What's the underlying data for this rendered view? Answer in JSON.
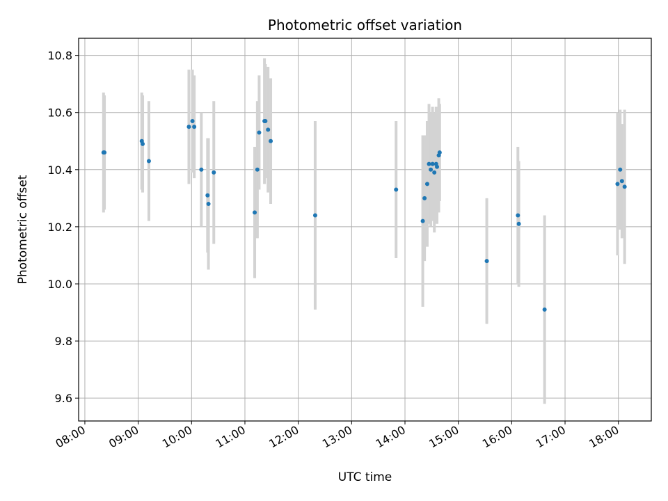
{
  "chart_data": {
    "type": "scatter",
    "title": "Photometric offset variation",
    "xlabel": "UTC time",
    "ylabel": "Photometric offset",
    "xlim": [
      "07:53",
      "18:37"
    ],
    "ylim": [
      9.52,
      10.86
    ],
    "xticks": [
      "08:00",
      "09:00",
      "10:00",
      "11:00",
      "12:00",
      "13:00",
      "14:00",
      "15:00",
      "16:00",
      "17:00",
      "18:00"
    ],
    "yticks": [
      9.6,
      9.8,
      10.0,
      10.2,
      10.4,
      10.6,
      10.8
    ],
    "ytick_labels": [
      "9.6",
      "9.8",
      "10.0",
      "10.2",
      "10.4",
      "10.6",
      "10.8"
    ],
    "grid": true,
    "colors": {
      "point": "#1f77b4",
      "errorbar": "#d3d3d3",
      "grid": "#b0b0b0"
    },
    "points": [
      {
        "x": "08:21",
        "y": 10.46,
        "err": 0.21
      },
      {
        "x": "08:22",
        "y": 10.46,
        "err": 0.2
      },
      {
        "x": "09:04",
        "y": 10.5,
        "err": 0.17
      },
      {
        "x": "09:05",
        "y": 10.49,
        "err": 0.17
      },
      {
        "x": "09:12",
        "y": 10.43,
        "err": 0.21
      },
      {
        "x": "09:57",
        "y": 10.55,
        "err": 0.2
      },
      {
        "x": "10:01",
        "y": 10.57,
        "err": 0.18
      },
      {
        "x": "10:03",
        "y": 10.55,
        "err": 0.18
      },
      {
        "x": "10:11",
        "y": 10.4,
        "err": 0.2
      },
      {
        "x": "10:18",
        "y": 10.31,
        "err": 0.2
      },
      {
        "x": "10:19",
        "y": 10.28,
        "err": 0.23
      },
      {
        "x": "10:25",
        "y": 10.39,
        "err": 0.25
      },
      {
        "x": "11:11",
        "y": 10.25,
        "err": 0.23
      },
      {
        "x": "11:14",
        "y": 10.4,
        "err": 0.24
      },
      {
        "x": "11:16",
        "y": 10.53,
        "err": 0.2
      },
      {
        "x": "11:22",
        "y": 10.57,
        "err": 0.22
      },
      {
        "x": "11:23",
        "y": 10.57,
        "err": 0.2
      },
      {
        "x": "11:26",
        "y": 10.54,
        "err": 0.22
      },
      {
        "x": "11:29",
        "y": 10.5,
        "err": 0.22
      },
      {
        "x": "12:19",
        "y": 10.24,
        "err": 0.33
      },
      {
        "x": "13:50",
        "y": 10.33,
        "err": 0.24
      },
      {
        "x": "14:20",
        "y": 10.22,
        "err": 0.3
      },
      {
        "x": "14:22",
        "y": 10.3,
        "err": 0.22
      },
      {
        "x": "14:25",
        "y": 10.35,
        "err": 0.22
      },
      {
        "x": "14:27",
        "y": 10.42,
        "err": 0.21
      },
      {
        "x": "14:29",
        "y": 10.4,
        "err": 0.2
      },
      {
        "x": "14:31",
        "y": 10.42,
        "err": 0.2
      },
      {
        "x": "14:33",
        "y": 10.39,
        "err": 0.21
      },
      {
        "x": "14:35",
        "y": 10.42,
        "err": 0.2
      },
      {
        "x": "14:36",
        "y": 10.41,
        "err": 0.2
      },
      {
        "x": "14:38",
        "y": 10.45,
        "err": 0.2
      },
      {
        "x": "14:39",
        "y": 10.46,
        "err": 0.17
      },
      {
        "x": "15:32",
        "y": 10.08,
        "err": 0.22
      },
      {
        "x": "16:07",
        "y": 10.24,
        "err": 0.24
      },
      {
        "x": "16:08",
        "y": 10.21,
        "err": 0.22
      },
      {
        "x": "16:37",
        "y": 9.91,
        "err": 0.33
      },
      {
        "x": "17:59",
        "y": 10.35,
        "err": 0.25
      },
      {
        "x": "18:02",
        "y": 10.4,
        "err": 0.21
      },
      {
        "x": "18:04",
        "y": 10.36,
        "err": 0.2
      },
      {
        "x": "18:07",
        "y": 10.34,
        "err": 0.27
      }
    ]
  }
}
